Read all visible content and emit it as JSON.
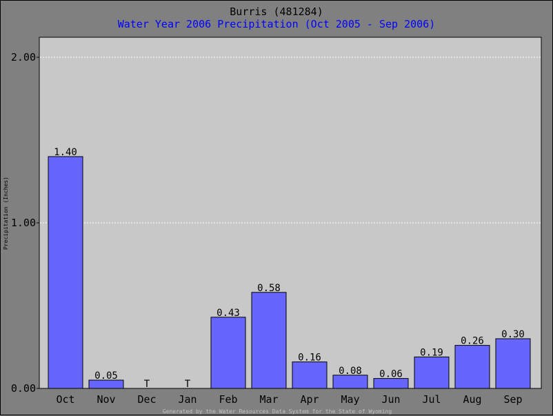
{
  "chart_data": {
    "type": "bar",
    "title": "Burris (481284)",
    "subtitle": "Water Year 2006 Precipitation (Oct 2005 - Sep 2006)",
    "ylabel": "Precipitation (Inches)",
    "xlabel": "",
    "ylim": [
      0,
      2.0
    ],
    "yticks": [
      "0.00",
      "1.00",
      "2.00"
    ],
    "ytick_values": [
      0,
      1.0,
      2.0
    ],
    "grid": true,
    "categories": [
      "Oct",
      "Nov",
      "Dec",
      "Jan",
      "Feb",
      "Mar",
      "Apr",
      "May",
      "Jun",
      "Jul",
      "Aug",
      "Sep"
    ],
    "values": [
      1.4,
      0.05,
      0,
      0,
      0.43,
      0.58,
      0.16,
      0.08,
      0.06,
      0.19,
      0.26,
      0.3
    ],
    "data_labels": [
      "1.40",
      "0.05",
      "T",
      "T",
      "0.43",
      "0.58",
      "0.16",
      "0.08",
      "0.06",
      "0.19",
      "0.26",
      "0.30"
    ],
    "bar_color": "#6666ff",
    "plot_bg": "#c8c8c8",
    "subtitle_color": "#0000ff",
    "footer": "Generated by the Water Resources Data System for the State of Wyoming"
  }
}
